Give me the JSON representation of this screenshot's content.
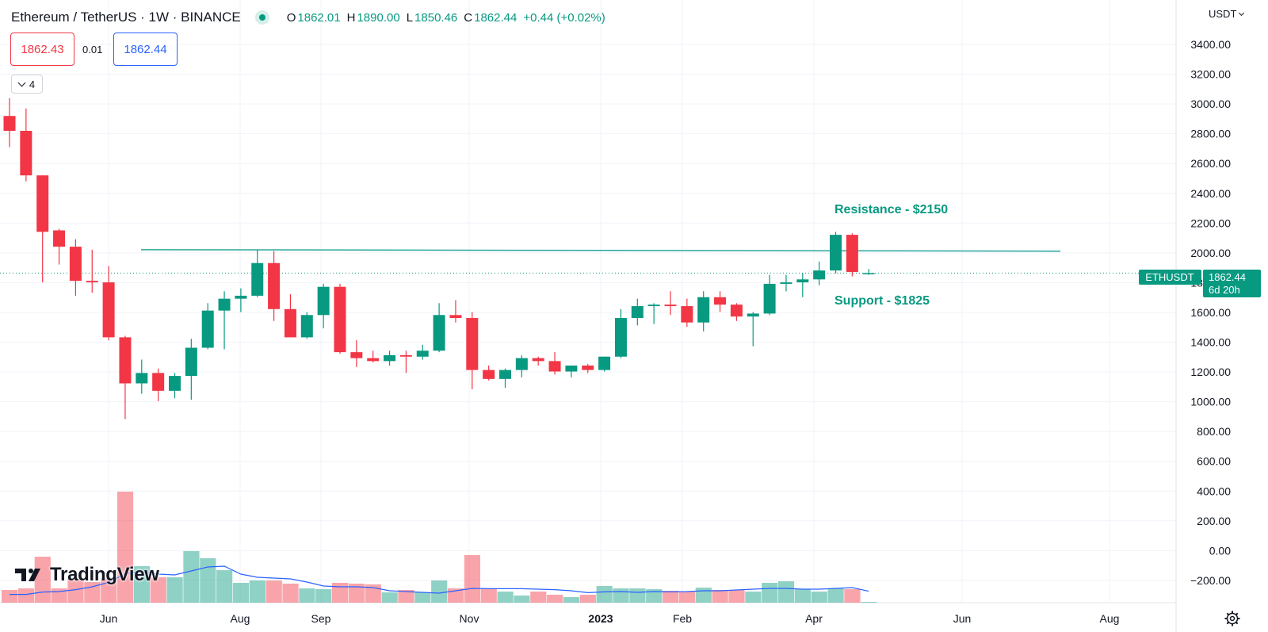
{
  "header": {
    "symbol": "Ethereum / TetherUS · 1W · BINANCE",
    "ohlc": [
      {
        "key": "O",
        "value": "1862.01"
      },
      {
        "key": "H",
        "value": "1890.00"
      },
      {
        "key": "L",
        "value": "1850.46"
      },
      {
        "key": "C",
        "value": "1862.44"
      }
    ],
    "change": "+0.44 (+0.02%)"
  },
  "trade": {
    "bid": "1862.43",
    "spread": "0.01",
    "ask": "1862.44"
  },
  "indicators_toggle": {
    "count": "4"
  },
  "currency": "USDT",
  "brand": {
    "name": "TradingView"
  },
  "colors": {
    "up": "#089981",
    "down": "#f23645",
    "ma": "#2962ff",
    "level_line": "#26a69a"
  },
  "icons": {
    "live": "live-status-dot-icon",
    "settings": "gear-icon",
    "collapse": "chevron-down-icon",
    "logo": "tradingview-logo-icon"
  },
  "chart_data": {
    "type": "candlestick",
    "interval": "1W",
    "price_axis_labels": [
      "3400.00",
      "3200.00",
      "3000.00",
      "2800.00",
      "2600.00",
      "2400.00",
      "2200.00",
      "2000.00",
      "1800.00",
      "1600.00",
      "1400.00",
      "1200.00",
      "1000.00",
      "800.00",
      "600.00",
      "400.00",
      "200.00",
      "0.00",
      "−200.00"
    ],
    "time_axis_labels": [
      {
        "label": "Jun",
        "bold": false
      },
      {
        "label": "Aug",
        "bold": false
      },
      {
        "label": "Sep",
        "bold": false
      },
      {
        "label": "Nov",
        "bold": false
      },
      {
        "label": "2023",
        "bold": true
      },
      {
        "label": "Feb",
        "bold": false
      },
      {
        "label": "Apr",
        "bold": false
      },
      {
        "label": "Jun",
        "bold": false
      },
      {
        "label": "Aug",
        "bold": false
      }
    ],
    "candles": [
      {
        "o": 2920,
        "h": 3040,
        "l": 2710,
        "c": 2820
      },
      {
        "o": 2820,
        "h": 2970,
        "l": 2480,
        "c": 2520
      },
      {
        "o": 2520,
        "h": 2520,
        "l": 1800,
        "c": 2140
      },
      {
        "o": 2150,
        "h": 2160,
        "l": 1920,
        "c": 2040
      },
      {
        "o": 2040,
        "h": 2090,
        "l": 1710,
        "c": 1810
      },
      {
        "o": 1810,
        "h": 2020,
        "l": 1730,
        "c": 1800
      },
      {
        "o": 1800,
        "h": 1910,
        "l": 1410,
        "c": 1430
      },
      {
        "o": 1430,
        "h": 1440,
        "l": 880,
        "c": 1120
      },
      {
        "o": 1120,
        "h": 1280,
        "l": 1050,
        "c": 1190
      },
      {
        "o": 1190,
        "h": 1220,
        "l": 1000,
        "c": 1070
      },
      {
        "o": 1070,
        "h": 1190,
        "l": 1020,
        "c": 1170
      },
      {
        "o": 1170,
        "h": 1420,
        "l": 1010,
        "c": 1360
      },
      {
        "o": 1360,
        "h": 1660,
        "l": 1350,
        "c": 1610
      },
      {
        "o": 1610,
        "h": 1740,
        "l": 1350,
        "c": 1690
      },
      {
        "o": 1690,
        "h": 1760,
        "l": 1600,
        "c": 1710
      },
      {
        "o": 1710,
        "h": 2020,
        "l": 1700,
        "c": 1930
      },
      {
        "o": 1930,
        "h": 2010,
        "l": 1540,
        "c": 1620
      },
      {
        "o": 1620,
        "h": 1720,
        "l": 1430,
        "c": 1430
      },
      {
        "o": 1430,
        "h": 1600,
        "l": 1420,
        "c": 1580
      },
      {
        "o": 1580,
        "h": 1790,
        "l": 1490,
        "c": 1770
      },
      {
        "o": 1770,
        "h": 1790,
        "l": 1320,
        "c": 1330
      },
      {
        "o": 1330,
        "h": 1410,
        "l": 1230,
        "c": 1290
      },
      {
        "o": 1290,
        "h": 1340,
        "l": 1260,
        "c": 1270
      },
      {
        "o": 1270,
        "h": 1340,
        "l": 1240,
        "c": 1310
      },
      {
        "o": 1310,
        "h": 1340,
        "l": 1190,
        "c": 1300
      },
      {
        "o": 1300,
        "h": 1380,
        "l": 1280,
        "c": 1340
      },
      {
        "o": 1340,
        "h": 1660,
        "l": 1330,
        "c": 1580
      },
      {
        "o": 1580,
        "h": 1680,
        "l": 1530,
        "c": 1560
      },
      {
        "o": 1560,
        "h": 1600,
        "l": 1080,
        "c": 1210
      },
      {
        "o": 1210,
        "h": 1240,
        "l": 1140,
        "c": 1150
      },
      {
        "o": 1150,
        "h": 1220,
        "l": 1090,
        "c": 1210
      },
      {
        "o": 1210,
        "h": 1310,
        "l": 1160,
        "c": 1290
      },
      {
        "o": 1290,
        "h": 1300,
        "l": 1240,
        "c": 1270
      },
      {
        "o": 1270,
        "h": 1330,
        "l": 1180,
        "c": 1200
      },
      {
        "o": 1200,
        "h": 1240,
        "l": 1160,
        "c": 1240
      },
      {
        "o": 1240,
        "h": 1250,
        "l": 1190,
        "c": 1210
      },
      {
        "o": 1210,
        "h": 1300,
        "l": 1200,
        "c": 1300
      },
      {
        "o": 1300,
        "h": 1620,
        "l": 1290,
        "c": 1560
      },
      {
        "o": 1560,
        "h": 1690,
        "l": 1510,
        "c": 1640
      },
      {
        "o": 1640,
        "h": 1660,
        "l": 1520,
        "c": 1650
      },
      {
        "o": 1650,
        "h": 1740,
        "l": 1580,
        "c": 1640
      },
      {
        "o": 1640,
        "h": 1690,
        "l": 1500,
        "c": 1530
      },
      {
        "o": 1530,
        "h": 1740,
        "l": 1470,
        "c": 1700
      },
      {
        "o": 1700,
        "h": 1740,
        "l": 1600,
        "c": 1650
      },
      {
        "o": 1650,
        "h": 1660,
        "l": 1540,
        "c": 1570
      },
      {
        "o": 1570,
        "h": 1600,
        "l": 1370,
        "c": 1590
      },
      {
        "o": 1590,
        "h": 1850,
        "l": 1580,
        "c": 1790
      },
      {
        "o": 1790,
        "h": 1850,
        "l": 1740,
        "c": 1800
      },
      {
        "o": 1800,
        "h": 1860,
        "l": 1700,
        "c": 1820
      },
      {
        "o": 1820,
        "h": 1940,
        "l": 1780,
        "c": 1880
      },
      {
        "o": 1880,
        "h": 2140,
        "l": 1860,
        "c": 2120
      },
      {
        "o": 2120,
        "h": 2130,
        "l": 1840,
        "c": 1870
      },
      {
        "o": 1862.01,
        "h": 1890,
        "l": 1850.46,
        "c": 1862.44
      }
    ],
    "volume": [
      80,
      90,
      290,
      90,
      150,
      130,
      155,
      700,
      230,
      160,
      160,
      325,
      280,
      205,
      125,
      140,
      140,
      120,
      90,
      85,
      125,
      120,
      115,
      65,
      80,
      65,
      140,
      90,
      300,
      90,
      70,
      45,
      70,
      50,
      35,
      50,
      105,
      90,
      90,
      85,
      75,
      70,
      95,
      80,
      80,
      70,
      125,
      135,
      85,
      70,
      90,
      85,
      5
    ],
    "volume_ma": [
      52,
      52,
      67,
      70,
      82,
      100,
      128,
      183,
      195,
      180,
      175,
      200,
      225,
      230,
      180,
      160,
      155,
      150,
      130,
      105,
      100,
      100,
      95,
      75,
      70,
      65,
      60,
      75,
      90,
      88,
      88,
      88,
      85,
      82,
      75,
      63,
      68,
      70,
      65,
      70,
      68,
      70,
      75,
      75,
      80,
      85,
      90,
      90,
      85,
      85,
      90,
      95,
      72
    ],
    "resistance": {
      "label": "Resistance - $2150",
      "level_start": 2020,
      "level_end": 2010
    },
    "support": {
      "label": "Support - $1825"
    },
    "last_price": {
      "symbol": "ETHUSDT",
      "price": "1862.44",
      "countdown": "6d 20h"
    }
  }
}
